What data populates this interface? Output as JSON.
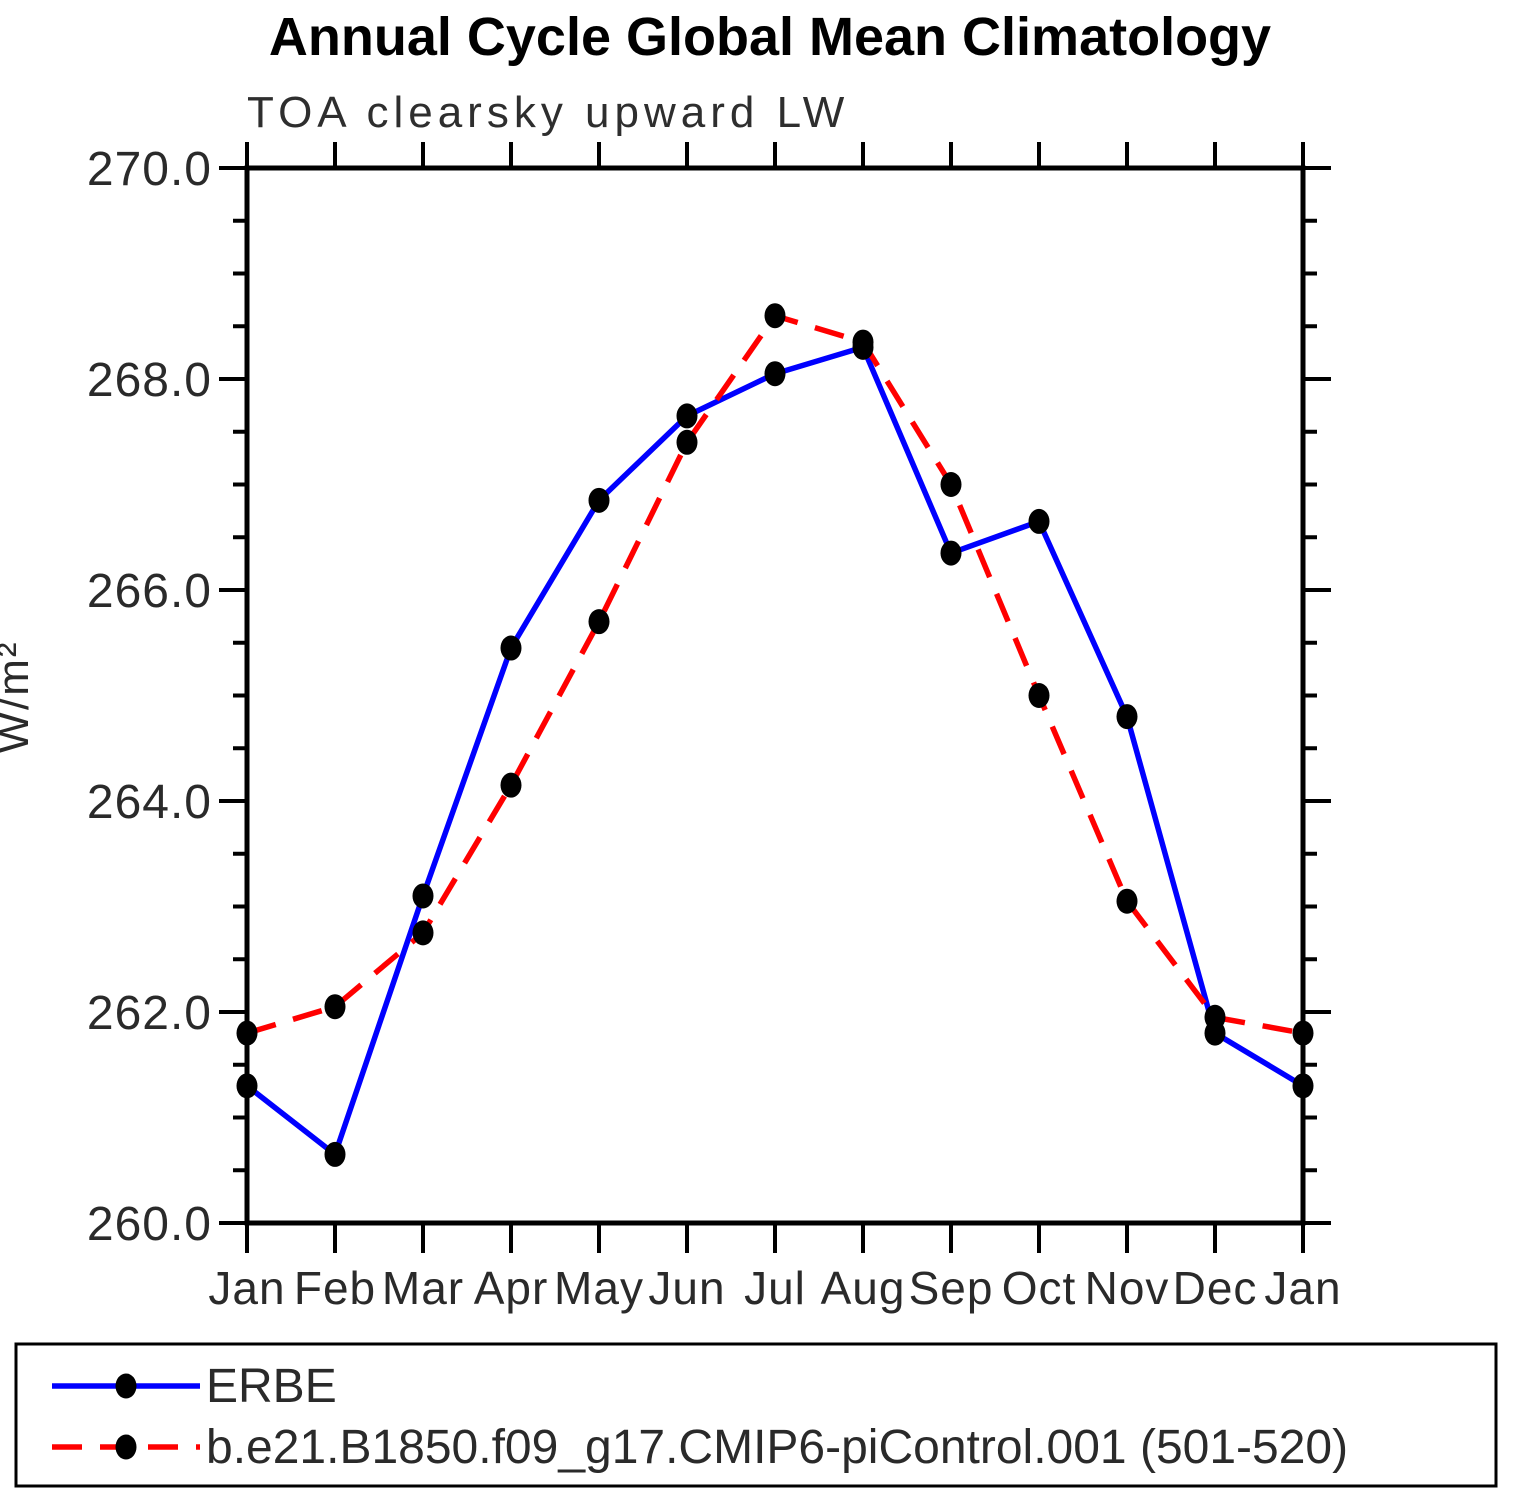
{
  "chart_data": {
    "type": "line",
    "title": "Annual Cycle Global Mean Climatology",
    "subtitle": "TOA clearsky upward LW",
    "ylabel": "W/m²",
    "xlabel": "",
    "x_tick_labels": [
      "Jan",
      "Feb",
      "Mar",
      "Apr",
      "May",
      "Jun",
      "Jul",
      "Aug",
      "Sep",
      "Oct",
      "Nov",
      "Dec",
      "Jan"
    ],
    "ylim": [
      260.0,
      270.0
    ],
    "y_major_step": 2.0,
    "y_minor_step": 0.5,
    "y_tick_decimals": 1,
    "grid": false,
    "legend_position": "bottom-box",
    "marker": "filled-circle",
    "marker_color": "#000000",
    "axis_color": "#000000",
    "series": [
      {
        "name": "ERBE",
        "color": "#0000ff",
        "style": "solid",
        "values": [
          261.3,
          260.65,
          263.1,
          265.45,
          266.85,
          267.65,
          268.05,
          268.3,
          266.35,
          266.65,
          264.8,
          261.8,
          261.3
        ]
      },
      {
        "name": "b.e21.B1850.f09_g17.CMIP6-piControl.001 (501-520)",
        "color": "#ff0000",
        "style": "dashed",
        "values": [
          261.8,
          262.05,
          262.75,
          264.15,
          265.7,
          267.4,
          268.6,
          268.35,
          267.0,
          265.0,
          263.05,
          261.95,
          261.8
        ]
      }
    ]
  }
}
